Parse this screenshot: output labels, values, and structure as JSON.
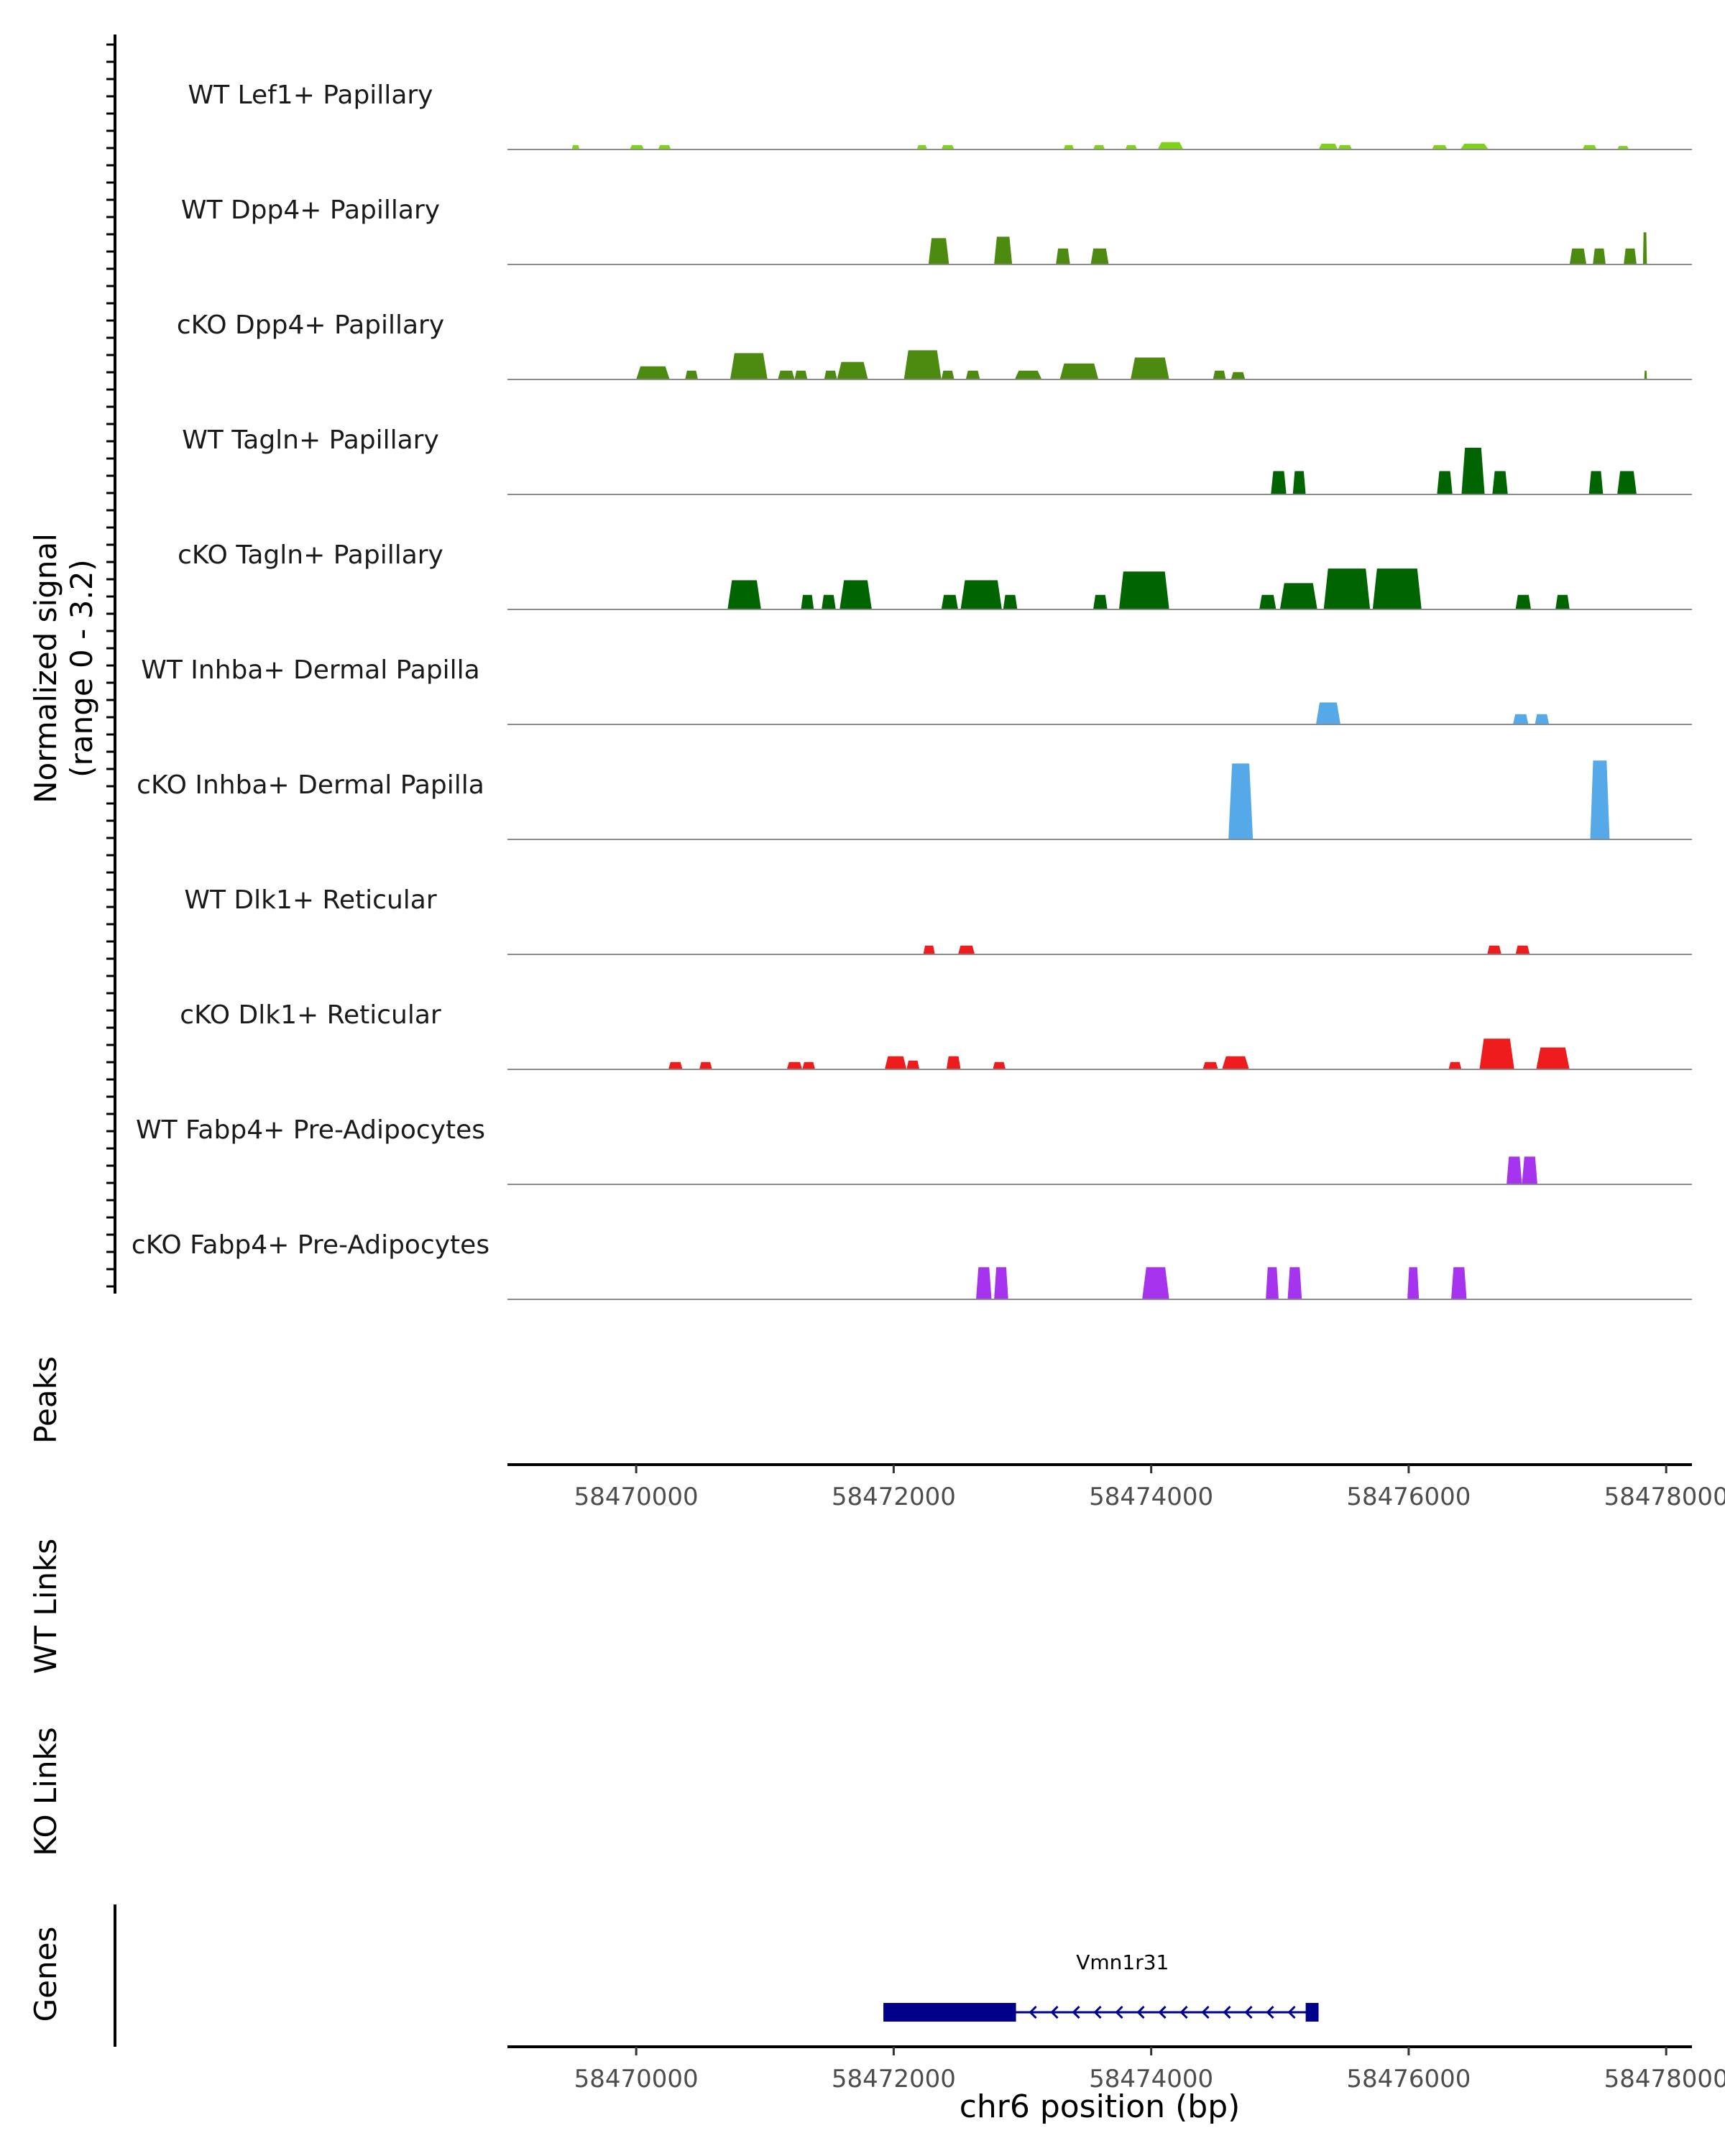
{
  "chart_data": {
    "type": "area",
    "title": "",
    "chromosome": "chr6",
    "xlabel": "chr6 position (bp)",
    "xlim": [
      58469000,
      58478200
    ],
    "xticks": [
      58470000,
      58472000,
      58474000,
      58476000,
      58478000
    ],
    "xtick_labels": [
      "58470000",
      "58472000",
      "58474000",
      "58476000",
      "58478000"
    ],
    "y_axis_label_line1": "Normalized signal",
    "y_axis_label_line2": "(range 0 - 3.2)",
    "ylim": [
      0,
      3.2
    ],
    "peaks_label": "Peaks",
    "wt_links_label": "WT Links",
    "ko_links_label": "KO Links",
    "genes_label": "Genes",
    "gene": {
      "name": "Vmn1r31",
      "strand": "-",
      "start": 58471920,
      "end": 58475300,
      "thick_blocks": [
        [
          58471920,
          58472950
        ],
        [
          58475200,
          58475300
        ]
      ],
      "color": "#00008b"
    },
    "series": [
      {
        "name": "WT Lef1+ Papillary",
        "color": "#7fd11b",
        "peaks": [
          [
            58469500,
            58469560,
            0.15
          ],
          [
            58469950,
            58470060,
            0.15
          ],
          [
            58470170,
            58470270,
            0.15
          ],
          [
            58472180,
            58472260,
            0.15
          ],
          [
            58472370,
            58472470,
            0.15
          ],
          [
            58473320,
            58473400,
            0.15
          ],
          [
            58473550,
            58473640,
            0.15
          ],
          [
            58473800,
            58473890,
            0.15
          ],
          [
            58474050,
            58474250,
            0.25
          ],
          [
            58475300,
            58475450,
            0.2
          ],
          [
            58475450,
            58475560,
            0.15
          ],
          [
            58476180,
            58476300,
            0.15
          ],
          [
            58476400,
            58476620,
            0.2
          ],
          [
            58477350,
            58477460,
            0.15
          ],
          [
            58477620,
            58477710,
            0.12
          ]
        ]
      },
      {
        "name": "WT Dpp4+ Papillary",
        "color": "#4d8b10",
        "peaks": [
          [
            58472270,
            58472430,
            0.9
          ],
          [
            58472780,
            58472920,
            0.95
          ],
          [
            58473260,
            58473370,
            0.55
          ],
          [
            58473530,
            58473670,
            0.55
          ],
          [
            58477250,
            58477380,
            0.55
          ],
          [
            58477430,
            58477530,
            0.55
          ],
          [
            58477670,
            58477770,
            0.55
          ],
          [
            58477820,
            58477850,
            1.1
          ]
        ]
      },
      {
        "name": "cKO Dpp4+ Papillary",
        "color": "#4d8b10",
        "peaks": [
          [
            58470000,
            58470260,
            0.45
          ],
          [
            58470380,
            58470480,
            0.3
          ],
          [
            58470730,
            58471020,
            0.9
          ],
          [
            58471100,
            58471230,
            0.3
          ],
          [
            58471230,
            58471330,
            0.3
          ],
          [
            58471460,
            58471560,
            0.3
          ],
          [
            58471560,
            58471800,
            0.6
          ],
          [
            58472080,
            58472370,
            1.0
          ],
          [
            58472370,
            58472470,
            0.3
          ],
          [
            58472560,
            58472670,
            0.3
          ],
          [
            58472940,
            58473150,
            0.3
          ],
          [
            58473290,
            58473590,
            0.55
          ],
          [
            58473840,
            58474140,
            0.75
          ],
          [
            58474480,
            58474580,
            0.3
          ],
          [
            58474620,
            58474730,
            0.25
          ],
          [
            58477830,
            58477850,
            0.3
          ]
        ]
      },
      {
        "name": "WT Tagln+ Papillary",
        "color": "#006400",
        "peaks": [
          [
            58474930,
            58475050,
            0.8
          ],
          [
            58475100,
            58475200,
            0.8
          ],
          [
            58476220,
            58476340,
            0.8
          ],
          [
            58476410,
            58476590,
            1.6
          ],
          [
            58476650,
            58476770,
            0.8
          ],
          [
            58477400,
            58477510,
            0.8
          ],
          [
            58477620,
            58477770,
            0.8
          ]
        ]
      },
      {
        "name": "cKO Tagln+ Papillary",
        "color": "#006400",
        "peaks": [
          [
            58470710,
            58470970,
            1.0
          ],
          [
            58471280,
            58471380,
            0.5
          ],
          [
            58471440,
            58471550,
            0.5
          ],
          [
            58471580,
            58471830,
            1.0
          ],
          [
            58472370,
            58472500,
            0.5
          ],
          [
            58472520,
            58472840,
            1.0
          ],
          [
            58472850,
            58472960,
            0.5
          ],
          [
            58473550,
            58473660,
            0.5
          ],
          [
            58473750,
            58474140,
            1.3
          ],
          [
            58474840,
            58474970,
            0.5
          ],
          [
            58475000,
            58475290,
            0.9
          ],
          [
            58475340,
            58475700,
            1.4
          ],
          [
            58475720,
            58476100,
            1.4
          ],
          [
            58476830,
            58476950,
            0.5
          ],
          [
            58477140,
            58477250,
            0.5
          ]
        ]
      },
      {
        "name": "WT Inhba+ Dermal Papilla",
        "color": "#56a9e8",
        "peaks": [
          [
            58475280,
            58475470,
            0.75
          ],
          [
            58476810,
            58476930,
            0.35
          ],
          [
            58476980,
            58477090,
            0.35
          ]
        ]
      },
      {
        "name": "cKO Inhba+ Dermal Papilla",
        "color": "#56a9e8",
        "peaks": [
          [
            58474600,
            58474790,
            2.6
          ],
          [
            58477410,
            58477560,
            2.7
          ]
        ]
      },
      {
        "name": "WT Dlk1+ Reticular",
        "color": "#ee1c1c",
        "peaks": [
          [
            58472230,
            58472320,
            0.3
          ],
          [
            58472500,
            58472630,
            0.3
          ],
          [
            58476610,
            58476720,
            0.3
          ],
          [
            58476830,
            58476940,
            0.3
          ]
        ]
      },
      {
        "name": "cKO Dlk1+ Reticular",
        "color": "#ee1c1c",
        "peaks": [
          [
            58470250,
            58470360,
            0.25
          ],
          [
            58470490,
            58470590,
            0.25
          ],
          [
            58471170,
            58471290,
            0.25
          ],
          [
            58471290,
            58471390,
            0.25
          ],
          [
            58471930,
            58472100,
            0.45
          ],
          [
            58472100,
            58472200,
            0.3
          ],
          [
            58472410,
            58472520,
            0.45
          ],
          [
            58472770,
            58472870,
            0.25
          ],
          [
            58474400,
            58474520,
            0.25
          ],
          [
            58474550,
            58474760,
            0.45
          ],
          [
            58476310,
            58476410,
            0.25
          ],
          [
            58476550,
            58476820,
            1.05
          ],
          [
            58476990,
            58477250,
            0.75
          ]
        ]
      },
      {
        "name": "WT Fabp4+ Pre-Adipocytes",
        "color": "#a633ee",
        "peaks": [
          [
            58476760,
            58476880,
            0.95
          ],
          [
            58476880,
            58477000,
            0.95
          ]
        ]
      },
      {
        "name": "cKO Fabp4+ Pre-Adipocytes",
        "color": "#a633ee",
        "peaks": [
          [
            58472640,
            58472760,
            1.1
          ],
          [
            58472780,
            58472890,
            1.1
          ],
          [
            58473930,
            58474140,
            1.1
          ],
          [
            58474890,
            58474990,
            1.1
          ],
          [
            58475060,
            58475170,
            1.1
          ],
          [
            58475990,
            58476080,
            1.1
          ],
          [
            58476330,
            58476450,
            1.1
          ]
        ]
      }
    ]
  }
}
